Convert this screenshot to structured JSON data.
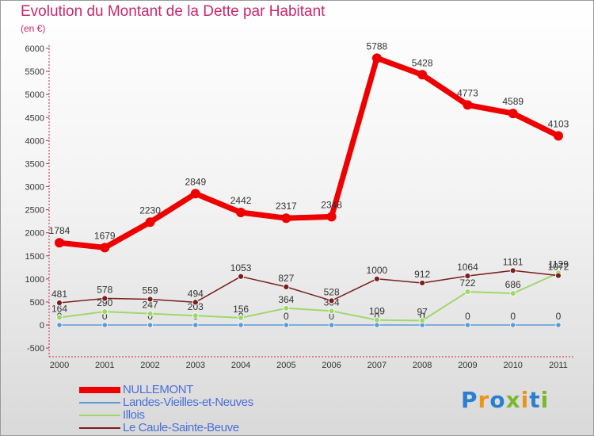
{
  "title": "Evolution du Montant de la Dette par Habitant",
  "subtitle": "(en €)",
  "logo_text": "Proxiti",
  "chart_data": {
    "type": "line",
    "title": "Evolution du Montant de la Dette par Habitant",
    "subtitle": "(en €)",
    "x": [
      "2000",
      "2001",
      "2002",
      "2003",
      "2004",
      "2005",
      "2006",
      "2007",
      "2008",
      "2009",
      "2010",
      "2011"
    ],
    "ylim": [
      -500,
      6000
    ],
    "yticks": [
      "-500",
      "0",
      "500",
      "1000",
      "1500",
      "2000",
      "2500",
      "3000",
      "3500",
      "4000",
      "4500",
      "5000",
      "5500",
      "6000"
    ],
    "grid": false,
    "legend_position": "bottom-left",
    "series": [
      {
        "name": "NULLEMONT",
        "color": "#ee0000",
        "values": [
          1784,
          1679,
          2230,
          2849,
          2442,
          2317,
          2348,
          5788,
          5428,
          4773,
          4589,
          4103
        ],
        "labels": [
          "1784",
          "1679",
          "2230",
          "2849",
          "2442",
          "2317",
          "2348",
          "5788",
          "5428",
          "4773",
          "4589",
          "4103"
        ]
      },
      {
        "name": "Landes-Vieilles-et-Neuves",
        "color": "#5b9bd5",
        "values": [
          0,
          0,
          0,
          0,
          0,
          0,
          0,
          0,
          0,
          0,
          0,
          0
        ],
        "labels": [
          "0",
          "0",
          "0",
          "0",
          "0",
          "0",
          "0",
          "0",
          "0",
          "0",
          "0",
          "0"
        ]
      },
      {
        "name": "Illois",
        "color": "#9fd86a",
        "values": [
          164,
          290,
          247,
          203,
          156,
          364,
          304,
          109,
          97,
          722,
          686,
          1129
        ],
        "labels": [
          "164",
          "290",
          "247",
          "203",
          "156",
          "364",
          "304",
          "109",
          "97",
          "722",
          "686",
          "1129"
        ]
      },
      {
        "name": "Le Caule-Sainte-Beuve",
        "color": "#7a1e1e",
        "values": [
          481,
          578,
          559,
          494,
          1053,
          827,
          528,
          1000,
          912,
          1064,
          1181,
          1072
        ],
        "labels": [
          "481",
          "578",
          "559",
          "494",
          "1053",
          "827",
          "528",
          "1000",
          "912",
          "1064",
          "1181",
          "1072"
        ]
      }
    ]
  }
}
